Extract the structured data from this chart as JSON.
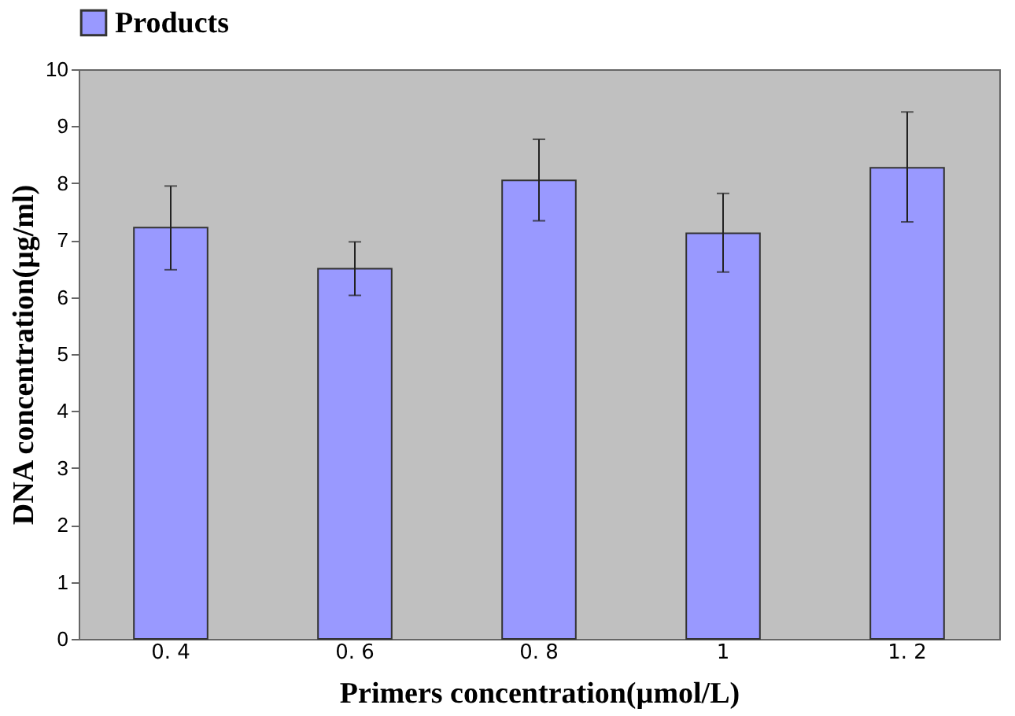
{
  "chart_data": {
    "type": "bar",
    "xlabel": "Primers concentration(µmol/L)",
    "ylabel": "DNA concentration(µg/ml)",
    "categories": [
      "0. 4",
      "0. 6",
      "0. 8",
      "1",
      "1. 2"
    ],
    "series": [
      {
        "name": "Products",
        "color": "#9999ff",
        "values": [
          7.22,
          6.5,
          8.05,
          7.12,
          8.27
        ],
        "errors": [
          [
            6.48,
            7.95
          ],
          [
            6.03,
            6.97
          ],
          [
            7.34,
            8.77
          ],
          [
            6.44,
            7.82
          ],
          [
            7.32,
            9.25
          ]
        ]
      }
    ],
    "ylim": [
      0,
      10
    ],
    "yticks": [
      0,
      1,
      2,
      3,
      4,
      5,
      6,
      7,
      8,
      9,
      10
    ],
    "grid": false,
    "legend": "top"
  }
}
